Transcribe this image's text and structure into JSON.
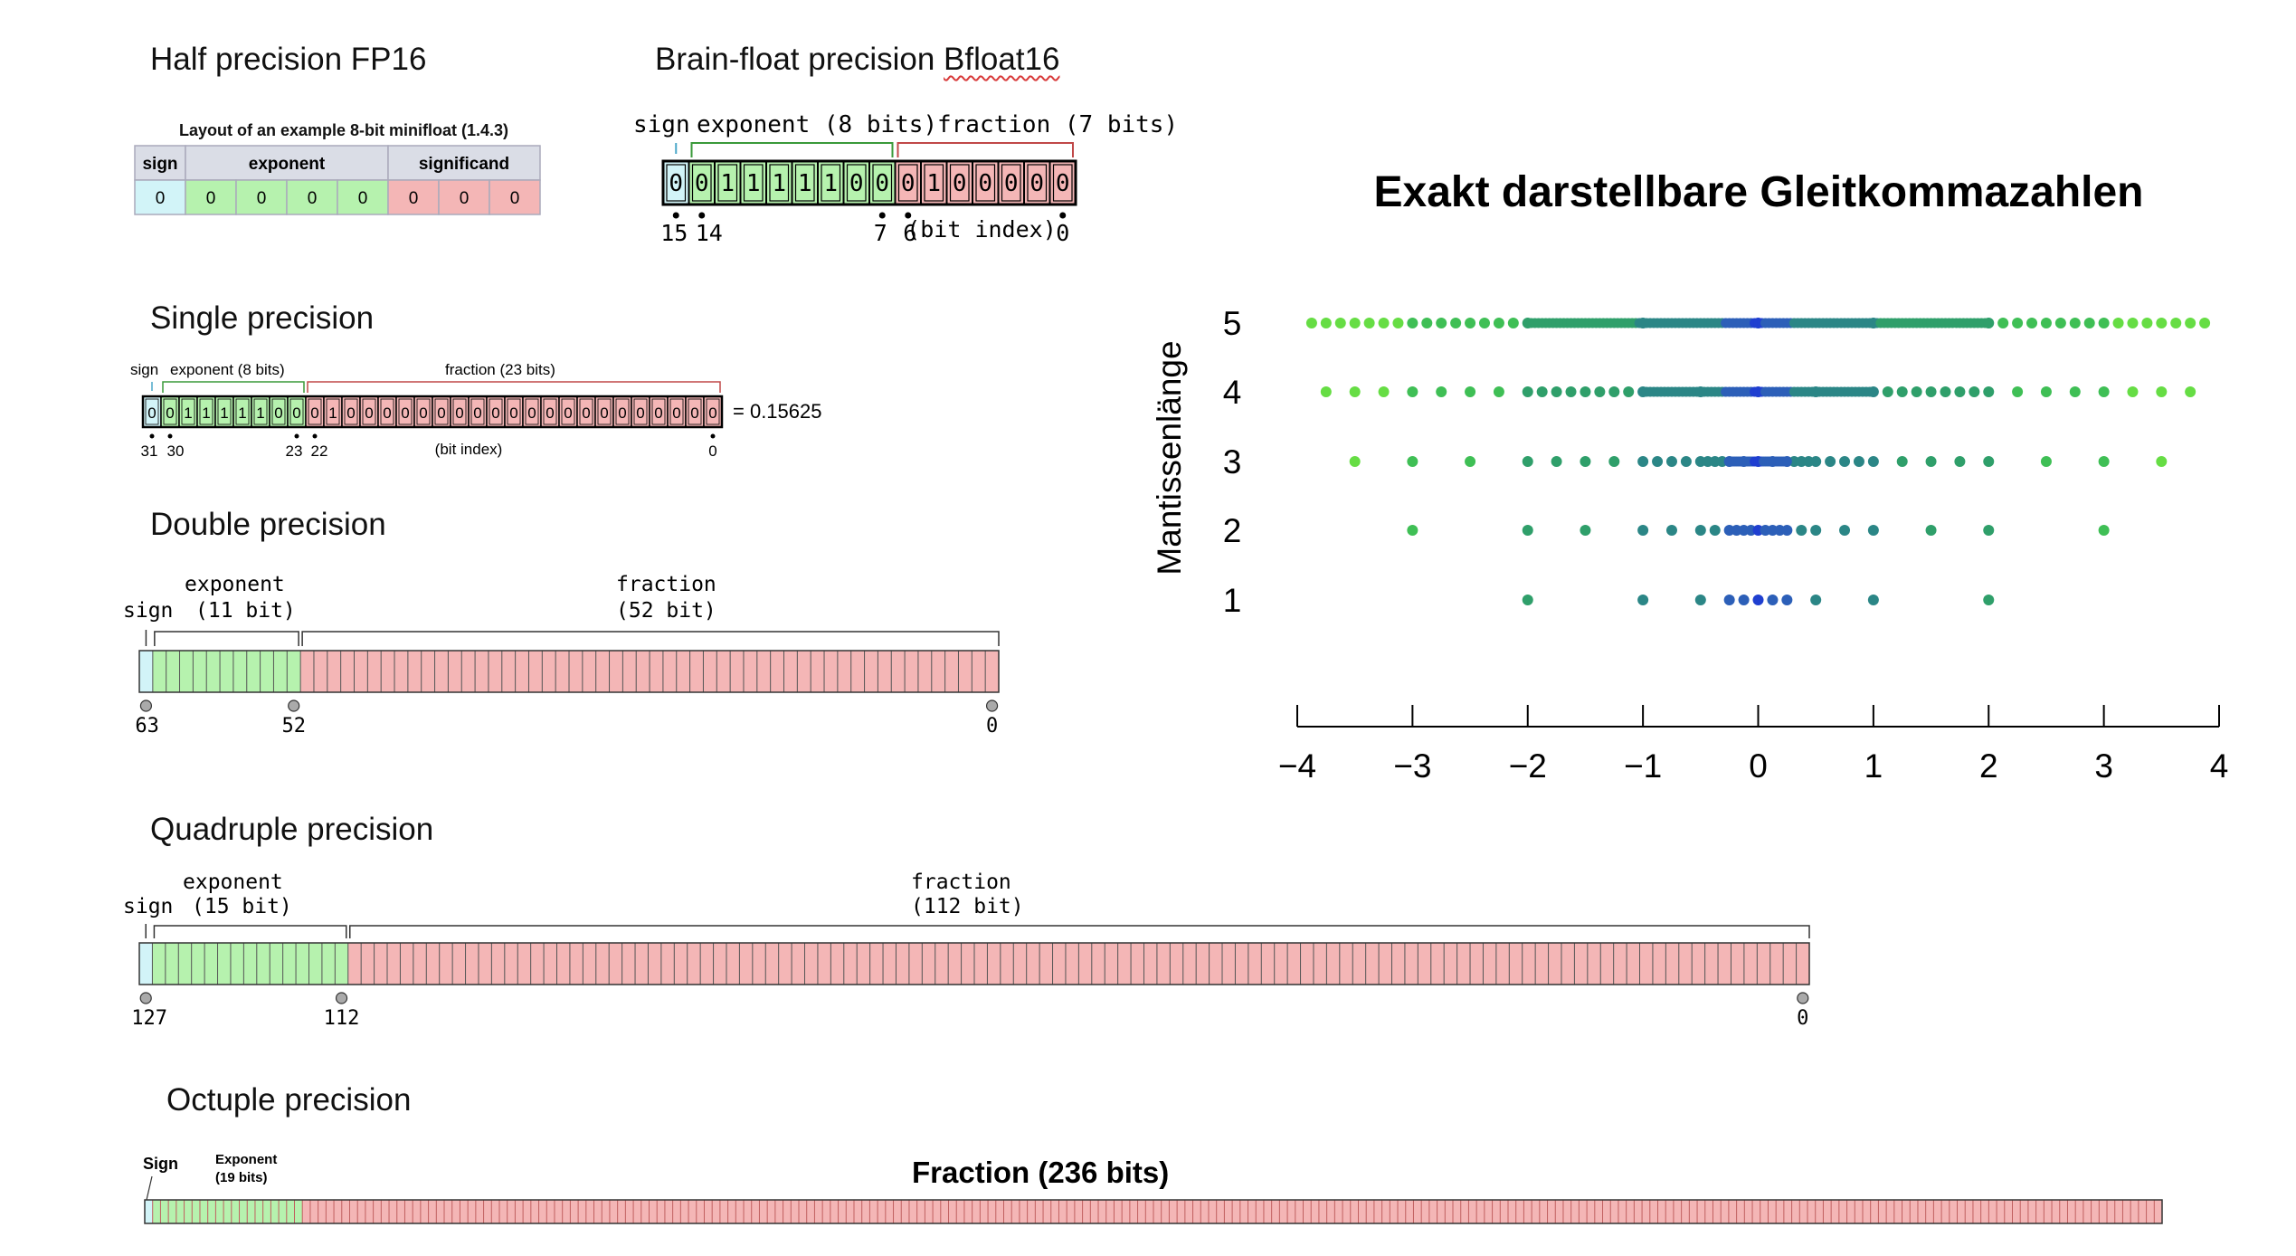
{
  "fp16": {
    "title": "Half precision FP16",
    "table_title": "Layout of an example 8-bit minifloat (1.4.3)",
    "headers": [
      "sign",
      "exponent",
      "significand"
    ],
    "sign_bits": [
      "0"
    ],
    "exponent_bits": [
      "0",
      "0",
      "0",
      "0"
    ],
    "significand_bits": [
      "0",
      "0",
      "0"
    ]
  },
  "bfloat16": {
    "title_plain": "Brain-float precision ",
    "title_marked": "Bfloat16",
    "sign_label": "sign",
    "exponent_label": "exponent (8 bits)",
    "fraction_label": "fraction (7 bits)",
    "bits": [
      "0",
      "0",
      "1",
      "1",
      "1",
      "1",
      "1",
      "0",
      "0",
      "0",
      "1",
      "0",
      "0",
      "0",
      "0",
      "0"
    ],
    "index_labels": [
      "15",
      "14",
      "7",
      "6",
      "(bit index)",
      "0"
    ]
  },
  "single": {
    "title": "Single precision",
    "sign_label": "sign",
    "exponent_label": "exponent (8 bits)",
    "fraction_label": "fraction (23 bits)",
    "bits": [
      "0",
      "0",
      "1",
      "1",
      "1",
      "1",
      "1",
      "0",
      "0",
      "0",
      "1",
      "0",
      "0",
      "0",
      "0",
      "0",
      "0",
      "0",
      "0",
      "0",
      "0",
      "0",
      "0",
      "0",
      "0",
      "0",
      "0",
      "0",
      "0",
      "0",
      "0",
      "0"
    ],
    "value": "= 0.15625",
    "index_labels": [
      "31",
      "30",
      "23",
      "22",
      "(bit index)",
      "0"
    ]
  },
  "double": {
    "title": "Double precision",
    "sign_label": "sign",
    "exponent_label": "exponent",
    "exponent_bits_label": "(11 bit)",
    "fraction_label": "fraction",
    "fraction_bits_label": "(52 bit)",
    "index_labels": [
      "63",
      "52",
      "0"
    ],
    "bit_counts": {
      "sign": 1,
      "exponent": 11,
      "fraction": 52
    }
  },
  "quad": {
    "title": "Quadruple precision",
    "sign_label": "sign",
    "exponent_label": "exponent",
    "exponent_bits_label": "(15 bit)",
    "fraction_label": "fraction",
    "fraction_bits_label": "(112 bit)",
    "index_labels": [
      "127",
      "112",
      "0"
    ],
    "bit_counts": {
      "sign": 1,
      "exponent": 15,
      "fraction": 112
    }
  },
  "octuple": {
    "title": "Octuple precision",
    "sign_label": "Sign",
    "exponent_label_1": "Exponent",
    "exponent_label_2": "(19 bits)",
    "fraction_label": "Fraction (236 bits)",
    "bit_counts": {
      "sign": 1,
      "exponent": 19,
      "fraction": 236
    }
  },
  "colors": {
    "sign": "#d2f4f8",
    "exponent": "#b6f2ae",
    "fraction": "#f4b6b6",
    "header_bg": "#dadde6"
  },
  "chart_data": {
    "type": "scatter",
    "title": "Exakt darstellbare Gleitkommazahlen",
    "xlabel": "",
    "ylabel": "Mantissenlänge",
    "xlim": [
      -4,
      4
    ],
    "xticks": [
      "−4",
      "−3",
      "−2",
      "−1",
      "0",
      "1",
      "2",
      "3",
      "4"
    ],
    "yticks": [
      "5",
      "4",
      "3",
      "2",
      "1"
    ],
    "grid": false,
    "series": [
      {
        "mantissa": 1,
        "x": [
          -2,
          -1,
          -0.5,
          -0.25,
          -0.125,
          0,
          0.125,
          0.25,
          0.5,
          1,
          2
        ]
      },
      {
        "mantissa": 2,
        "x": [
          -3,
          -2,
          -1.5,
          -1,
          -0.75,
          -0.5,
          -0.375,
          -0.25,
          -0.1875,
          -0.125,
          -0.0625,
          0,
          0.0625,
          0.125,
          0.1875,
          0.25,
          0.375,
          0.5,
          0.75,
          1,
          1.5,
          2,
          3
        ]
      },
      {
        "mantissa": 3,
        "x": [
          -3.5,
          -3,
          -2.5,
          -2,
          -1.75,
          -1.5,
          -1.25,
          -1,
          -0.875,
          -0.75,
          -0.625,
          -0.5,
          -0.4375,
          -0.375,
          -0.3125,
          -0.25,
          -0.125,
          0,
          0.125,
          0.25,
          0.3125,
          0.375,
          0.4375,
          0.5,
          0.625,
          0.75,
          0.875,
          1,
          1.25,
          1.5,
          1.75,
          2,
          2.5,
          3,
          3.5
        ]
      },
      {
        "mantissa": 4,
        "x": [
          -3.75,
          -3.5,
          -3.25,
          -3,
          -2.75,
          -2.5,
          -2.25,
          -2,
          -1.875,
          -1.75,
          -1.625,
          -1.5,
          -1.375,
          -1.25,
          -1.125,
          -1,
          -0.5,
          0,
          0.5,
          1,
          1.125,
          1.25,
          1.375,
          1.5,
          1.625,
          1.75,
          1.875,
          2,
          2.25,
          2.5,
          2.75,
          3,
          3.25,
          3.5,
          3.75
        ]
      },
      {
        "mantissa": 5,
        "x": [
          -3.875,
          -3.75,
          -3.625,
          -3.5,
          -3.375,
          -3.25,
          -3.125,
          -3,
          -2.875,
          -2.75,
          -2.625,
          -2.5,
          -2.375,
          -2.25,
          -2.125,
          -2,
          -1,
          0,
          1,
          2,
          2.125,
          2.25,
          2.375,
          2.5,
          2.625,
          2.75,
          2.875,
          3,
          3.125,
          3.25,
          3.375,
          3.5,
          3.625,
          3.75,
          3.875
        ]
      }
    ]
  }
}
